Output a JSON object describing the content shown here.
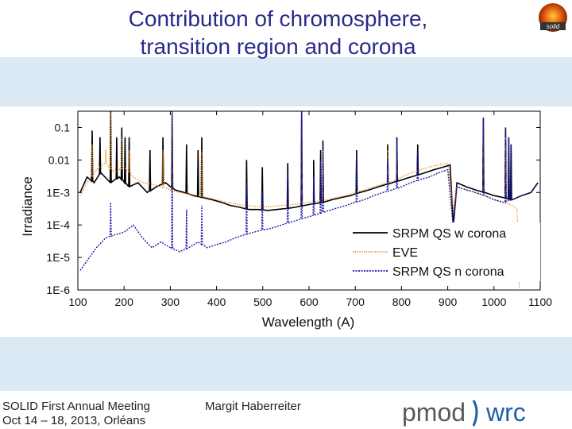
{
  "header": {
    "title_line1": "Contribution of chromosphere,",
    "title_line2": "transition region and corona",
    "logo_text": "solid"
  },
  "footer": {
    "meeting_line1": "SOLID First Annual Meeting",
    "meeting_line2": "Oct 14 – 18, 2013, Orléans",
    "author": "Margit Haberreiter",
    "logo_left": "pmod",
    "logo_right": "wrc"
  },
  "colors": {
    "title": "#2a2a8c",
    "band": "#dbe9f5",
    "series_w_corona": "#000000",
    "series_eve": "#f08a1c",
    "series_n_corona": "#1a1aa8",
    "logo_gray": "#5a5a5a",
    "logo_blue": "#1f5fa8"
  },
  "chart_data": {
    "type": "line",
    "title": "",
    "xlabel": "Wavelength (A)",
    "ylabel": "Irradiance",
    "xlim": [
      100,
      1100
    ],
    "ylim_log10": [
      -6,
      -0.5
    ],
    "x_ticks": [
      100,
      200,
      300,
      400,
      500,
      600,
      700,
      800,
      900,
      1000,
      1100
    ],
    "y_ticks": [
      {
        "value": 0.1,
        "label": "0.1"
      },
      {
        "value": 0.01,
        "label": "0.01"
      },
      {
        "value": 0.001,
        "label": "1E-3"
      },
      {
        "value": 0.0001,
        "label": "1E-4"
      },
      {
        "value": 1e-05,
        "label": "1E-5"
      },
      {
        "value": 1e-06,
        "label": "1E-6"
      }
    ],
    "legend_position": "bottom-right",
    "series": [
      {
        "name": "SRPM QS w corona",
        "style": "solid",
        "points": [
          [
            105,
            0.001
          ],
          [
            120,
            0.003
          ],
          [
            135,
            0.002
          ],
          [
            150,
            0.004
          ],
          [
            170,
            0.002
          ],
          [
            190,
            0.003
          ],
          [
            210,
            0.0015
          ],
          [
            230,
            0.002
          ],
          [
            250,
            0.001
          ],
          [
            270,
            0.0015
          ],
          [
            290,
            0.002
          ],
          [
            310,
            0.0012
          ],
          [
            330,
            0.001
          ],
          [
            350,
            0.0008
          ],
          [
            370,
            0.0007
          ],
          [
            390,
            0.0006
          ],
          [
            410,
            0.0005
          ],
          [
            430,
            0.0004
          ],
          [
            450,
            0.00035
          ],
          [
            470,
            0.0003
          ],
          [
            490,
            0.0003
          ],
          [
            510,
            0.00028
          ],
          [
            530,
            0.0003
          ],
          [
            550,
            0.00032
          ],
          [
            570,
            0.00035
          ],
          [
            590,
            0.0004
          ],
          [
            610,
            0.00045
          ],
          [
            630,
            0.0005
          ],
          [
            650,
            0.0006
          ],
          [
            670,
            0.0007
          ],
          [
            690,
            0.0008
          ],
          [
            710,
            0.001
          ],
          [
            730,
            0.0012
          ],
          [
            750,
            0.0015
          ],
          [
            770,
            0.0018
          ],
          [
            790,
            0.0022
          ],
          [
            810,
            0.0027
          ],
          [
            830,
            0.0033
          ],
          [
            850,
            0.004
          ],
          [
            870,
            0.005
          ],
          [
            890,
            0.006
          ],
          [
            905,
            0.007
          ],
          [
            912,
            0.0001
          ],
          [
            920,
            0.002
          ],
          [
            940,
            0.0015
          ],
          [
            960,
            0.0012
          ],
          [
            980,
            0.001
          ],
          [
            1000,
            0.0008
          ],
          [
            1020,
            0.0007
          ],
          [
            1040,
            0.0006
          ],
          [
            1060,
            0.0008
          ],
          [
            1080,
            0.001
          ],
          [
            1095,
            0.002
          ]
        ],
        "peaks": [
          [
            131,
            0.08
          ],
          [
            148,
            0.05
          ],
          [
            171,
            0.6
          ],
          [
            184,
            0.05
          ],
          [
            195,
            0.1
          ],
          [
            202,
            0.05
          ],
          [
            211,
            0.05
          ],
          [
            256,
            0.02
          ],
          [
            284,
            0.05
          ],
          [
            304,
            0.6
          ],
          [
            335,
            0.03
          ],
          [
            360,
            0.02
          ],
          [
            368,
            0.05
          ],
          [
            465,
            0.01
          ],
          [
            499,
            0.006
          ],
          [
            554,
            0.008
          ],
          [
            584,
            0.4
          ],
          [
            610,
            0.01
          ],
          [
            625,
            0.02
          ],
          [
            630,
            0.04
          ],
          [
            703,
            0.02
          ],
          [
            770,
            0.03
          ],
          [
            790,
            0.05
          ],
          [
            835,
            0.03
          ],
          [
            977,
            0.2
          ],
          [
            1025,
            0.1
          ],
          [
            1032,
            0.05
          ],
          [
            1037,
            0.03
          ]
        ]
      },
      {
        "name": "EVE",
        "style": "dotted",
        "points": [
          [
            105,
            0.0008
          ],
          [
            120,
            0.002
          ],
          [
            140,
            0.005
          ],
          [
            160,
            0.008
          ],
          [
            180,
            0.004
          ],
          [
            200,
            0.006
          ],
          [
            220,
            0.003
          ],
          [
            240,
            0.002
          ],
          [
            260,
            0.0018
          ],
          [
            280,
            0.0015
          ],
          [
            300,
            0.0012
          ],
          [
            320,
            0.001
          ],
          [
            340,
            0.0009
          ],
          [
            360,
            0.0008
          ],
          [
            380,
            0.0007
          ],
          [
            400,
            0.0006
          ],
          [
            420,
            0.0005
          ],
          [
            440,
            0.00045
          ],
          [
            460,
            0.0004
          ],
          [
            480,
            0.00038
          ],
          [
            500,
            0.00036
          ],
          [
            520,
            0.00037
          ],
          [
            540,
            0.0004
          ],
          [
            560,
            0.00042
          ],
          [
            580,
            0.00045
          ],
          [
            600,
            0.0005
          ],
          [
            620,
            0.00055
          ],
          [
            640,
            0.0006
          ],
          [
            660,
            0.0007
          ],
          [
            680,
            0.0008
          ],
          [
            700,
            0.001
          ],
          [
            720,
            0.0012
          ],
          [
            740,
            0.0015
          ],
          [
            760,
            0.0018
          ],
          [
            780,
            0.0022
          ],
          [
            800,
            0.003
          ],
          [
            820,
            0.004
          ],
          [
            840,
            0.005
          ],
          [
            860,
            0.006
          ],
          [
            880,
            0.007
          ],
          [
            900,
            0.008
          ],
          [
            912,
            0.0003
          ],
          [
            920,
            0.0015
          ],
          [
            940,
            0.0012
          ],
          [
            960,
            0.001
          ],
          [
            980,
            0.0008
          ],
          [
            1000,
            0.0006
          ],
          [
            1020,
            0.0005
          ],
          [
            1040,
            0.0004
          ],
          [
            1050,
            0.0003
          ],
          [
            1055,
            1e-06
          ]
        ],
        "peaks": [
          [
            131,
            0.03
          ],
          [
            160,
            0.02
          ],
          [
            171,
            0.3
          ],
          [
            195,
            0.05
          ],
          [
            211,
            0.02
          ],
          [
            284,
            0.02
          ],
          [
            304,
            0.3
          ],
          [
            368,
            0.02
          ],
          [
            584,
            0.1
          ],
          [
            630,
            0.02
          ],
          [
            770,
            0.02
          ],
          [
            790,
            0.03
          ],
          [
            977,
            0.08
          ],
          [
            1025,
            0.05
          ]
        ]
      },
      {
        "name": "SRPM QS n corona",
        "style": "dashed",
        "points": [
          [
            105,
            4e-06
          ],
          [
            120,
            8e-06
          ],
          [
            140,
            2e-05
          ],
          [
            160,
            4e-05
          ],
          [
            180,
            5e-05
          ],
          [
            200,
            6e-05
          ],
          [
            220,
            0.0001
          ],
          [
            240,
            4e-05
          ],
          [
            260,
            2e-05
          ],
          [
            280,
            3e-05
          ],
          [
            300,
            2e-05
          ],
          [
            320,
            1.5e-05
          ],
          [
            340,
            2e-05
          ],
          [
            360,
            3e-05
          ],
          [
            380,
            2e-05
          ],
          [
            400,
            2.5e-05
          ],
          [
            420,
            3e-05
          ],
          [
            440,
            4e-05
          ],
          [
            460,
            5e-05
          ],
          [
            480,
            6e-05
          ],
          [
            500,
            7e-05
          ],
          [
            520,
            8e-05
          ],
          [
            540,
            0.0001
          ],
          [
            560,
            0.00012
          ],
          [
            580,
            0.00015
          ],
          [
            600,
            0.00018
          ],
          [
            620,
            0.00022
          ],
          [
            640,
            0.00027
          ],
          [
            660,
            0.00033
          ],
          [
            680,
            0.0004
          ],
          [
            700,
            0.0005
          ],
          [
            720,
            0.0006
          ],
          [
            740,
            0.0008
          ],
          [
            760,
            0.001
          ],
          [
            780,
            0.0012
          ],
          [
            800,
            0.0015
          ],
          [
            820,
            0.002
          ],
          [
            840,
            0.0025
          ],
          [
            860,
            0.003
          ],
          [
            880,
            0.004
          ],
          [
            900,
            0.005
          ],
          [
            912,
            8e-05
          ],
          [
            920,
            0.0015
          ],
          [
            940,
            0.0012
          ],
          [
            960,
            0.001
          ],
          [
            980,
            0.0008
          ],
          [
            1000,
            0.0006
          ],
          [
            1020,
            0.0005
          ],
          [
            1040,
            0.0006
          ],
          [
            1060,
            0.0008
          ],
          [
            1080,
            0.001
          ],
          [
            1095,
            0.002
          ]
        ],
        "peaks": [
          [
            171,
            0.0005
          ],
          [
            304,
            0.5
          ],
          [
            335,
            0.0003
          ],
          [
            368,
            0.0004
          ],
          [
            465,
            0.002
          ],
          [
            499,
            0.001
          ],
          [
            554,
            0.004
          ],
          [
            584,
            0.4
          ],
          [
            610,
            0.003
          ],
          [
            625,
            0.01
          ],
          [
            630,
            0.03
          ],
          [
            703,
            0.015
          ],
          [
            770,
            0.01
          ],
          [
            790,
            0.04
          ],
          [
            835,
            0.02
          ],
          [
            977,
            0.2
          ],
          [
            1025,
            0.1
          ],
          [
            1032,
            0.05
          ],
          [
            1037,
            0.03
          ]
        ]
      }
    ]
  }
}
